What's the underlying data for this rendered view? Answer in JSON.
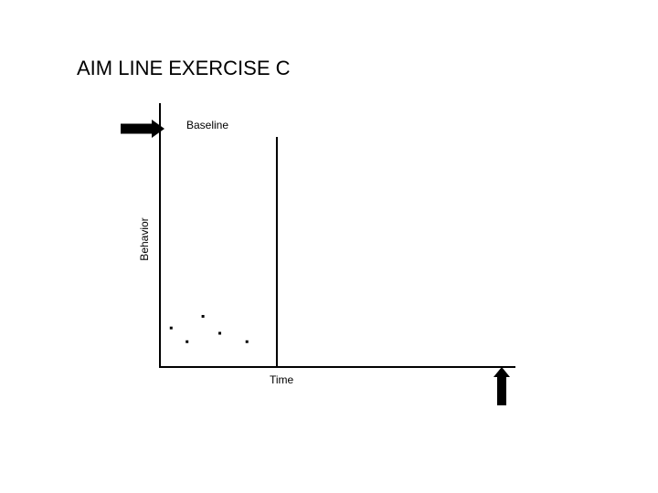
{
  "slide": {
    "title": "AIM LINE EXERCISE C"
  },
  "chart_data": {
    "type": "scatter",
    "title": "AIM LINE EXERCISE C",
    "xlabel": "Time",
    "ylabel": "Behavior",
    "annotations": [
      "Baseline"
    ],
    "xlim": [
      0,
      38
    ],
    "ylim": [
      0,
      25
    ],
    "phase_change_x": 12.5,
    "grid": false,
    "legend": "none",
    "series": [
      {
        "points": [
          {
            "x": 1.2,
            "y": 3.7
          },
          {
            "x": 2.9,
            "y": 2.4
          },
          {
            "x": 4.6,
            "y": 4.8
          },
          {
            "x": 6.4,
            "y": 3.2
          },
          {
            "x": 9.3,
            "y": 2.4
          }
        ]
      }
    ],
    "colors": {
      "ink": "#000000",
      "background": "#ffffff"
    },
    "icons": [
      "right-arrow-icon",
      "up-arrow-icon"
    ]
  }
}
